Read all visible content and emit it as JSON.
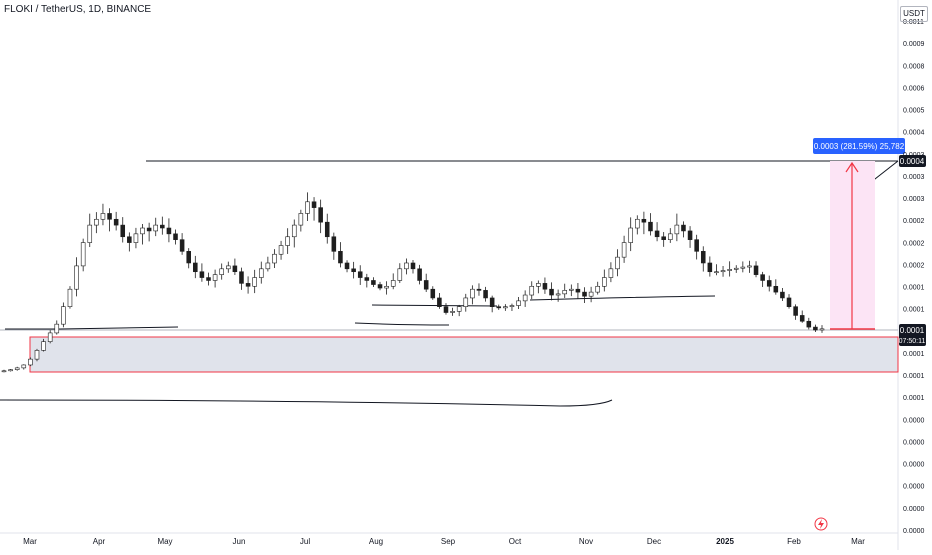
{
  "header": {
    "title": "FLOKI / TetherUS, 1D, BINANCE",
    "currency": "USDT"
  },
  "price_scale": {
    "labels": [
      "0.0011",
      "0.0009",
      "0.0008",
      "0.0006",
      "0.0005",
      "0.0004",
      "0.0003",
      "0.0003",
      "0.0003",
      "0.0002",
      "0.0002",
      "0.0002",
      "0.0001",
      "0.0001",
      "0.0001",
      "0.0001",
      "0.0001",
      "0.0001",
      "0.0000",
      "0.0000",
      "0.0000",
      "0.0000",
      "0.0000",
      "0.0000"
    ],
    "current_price": "0.0001",
    "countdown": "07:50:11",
    "resistance_label": "0.0004"
  },
  "time_scale": {
    "labels": [
      "Mar",
      "Apr",
      "May",
      "Jun",
      "Jul",
      "Aug",
      "Sep",
      "Oct",
      "Nov",
      "Dec",
      "2025",
      "Feb",
      "Mar"
    ]
  },
  "measure": {
    "label": "0.0003 (281.59%) 25,782"
  },
  "colors": {
    "up": "#089981",
    "down": "#f23645",
    "candle": "#1e1e1e",
    "measure_fill": "#fce4f5",
    "measure_line": "#f23645",
    "zone_fill": "#e0e3eb",
    "zone_border": "#f23645",
    "label_bg": "#2962ff"
  },
  "chart_data": {
    "type": "candlestick",
    "symbol": "FLOKI / TetherUS",
    "interval": "1D",
    "exchange": "BINANCE",
    "closes": [
      4e-05,
      4.2e-05,
      4.5e-05,
      5e-05,
      6e-05,
      7.5e-05,
      9e-05,
      0.000105,
      0.00012,
      0.00015,
      0.00018,
      0.00022,
      0.00026,
      0.00029,
      0.0003,
      0.00031,
      0.0003,
      0.00029,
      0.00027,
      0.00026,
      0.000275,
      0.000285,
      0.00028,
      0.00029,
      0.000285,
      0.000275,
      0.000265,
      0.000245,
      0.000225,
      0.00021,
      0.0002,
      0.000195,
      0.000205,
      0.000215,
      0.00022,
      0.00021,
      0.00019,
      0.000185,
      0.0002,
      0.000215,
      0.000225,
      0.00024,
      0.000255,
      0.00027,
      0.00029,
      0.00031,
      0.00033,
      0.00032,
      0.000295,
      0.00027,
      0.000245,
      0.000225,
      0.000215,
      0.00021,
      0.0002,
      0.000195,
      0.000188,
      0.000182,
      0.000185,
      0.000195,
      0.000215,
      0.000225,
      0.000215,
      0.000195,
      0.00018,
      0.000165,
      0.00015,
      0.00014,
      0.000142,
      0.00015,
      0.000165,
      0.00018,
      0.000178,
      0.000165,
      0.00015,
      0.000148,
      0.00015,
      0.000152,
      0.00016,
      0.00017,
      0.000185,
      0.00019,
      0.00018,
      0.00017,
      0.000172,
      0.000178,
      0.00018,
      0.000175,
      0.000168,
      0.000175,
      0.000185,
      0.0002,
      0.000215,
      0.000235,
      0.00026,
      0.000285,
      0.0003,
      0.000295,
      0.00028,
      0.00027,
      0.000265,
      0.000275,
      0.00029,
      0.00028,
      0.000265,
      0.000245,
      0.000225,
      0.00021,
      0.00021,
      0.000212,
      0.000214,
      0.000216,
      0.000218,
      0.00022,
      0.000205,
      0.000195,
      0.000185,
      0.000175,
      0.000165,
      0.00015,
      0.000135,
      0.000125,
      0.000115,
      0.00011,
      0.000112
    ]
  }
}
